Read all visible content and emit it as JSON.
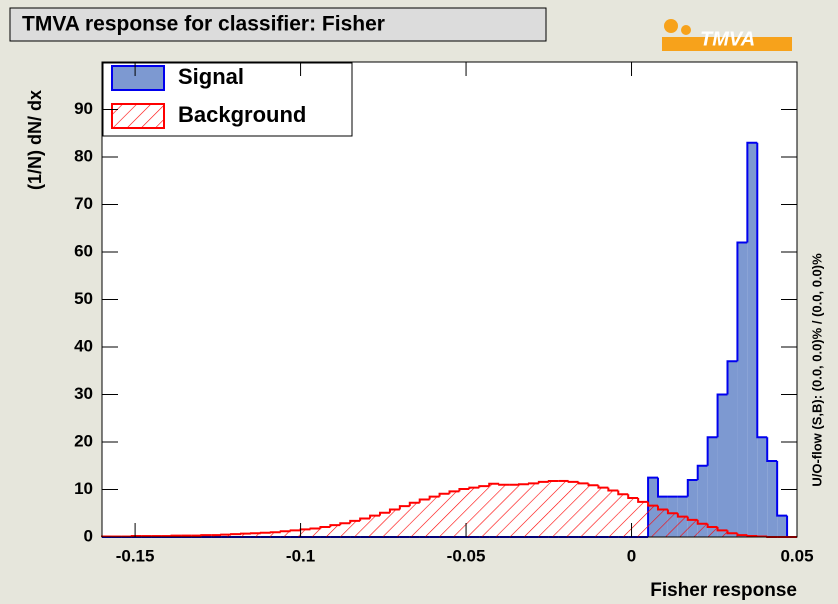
{
  "logo": "TMVA",
  "chart_data": {
    "type": "histogram",
    "title": "TMVA response for classifier: Fisher",
    "x_label": "Fisher response",
    "y_label": "(1/N) dN/ dx",
    "side_note": "U/O-flow (S,B): (0.0, 0.0)% / (0.0, 0.0)%",
    "xlim": [
      -0.16,
      0.05
    ],
    "ylim": [
      0,
      100
    ],
    "xticks": [
      -0.15,
      -0.1,
      -0.05,
      0,
      0.05
    ],
    "yticks": [
      0,
      10,
      20,
      30,
      40,
      50,
      60,
      70,
      80,
      90
    ],
    "bins": [
      -0.16,
      -0.157,
      -0.154,
      -0.151,
      -0.148,
      -0.145,
      -0.142,
      -0.139,
      -0.136,
      -0.133,
      -0.13,
      -0.127,
      -0.124,
      -0.121,
      -0.118,
      -0.115,
      -0.112,
      -0.109,
      -0.106,
      -0.103,
      -0.1,
      -0.097,
      -0.094,
      -0.091,
      -0.088,
      -0.085,
      -0.082,
      -0.079,
      -0.076,
      -0.073,
      -0.07,
      -0.067,
      -0.064,
      -0.061,
      -0.058,
      -0.055,
      -0.052,
      -0.049,
      -0.046,
      -0.043,
      -0.04,
      -0.037,
      -0.034,
      -0.031,
      -0.028,
      -0.025,
      -0.022,
      -0.019,
      -0.016,
      -0.013,
      -0.01,
      -0.007,
      -0.004,
      -0.001,
      0.002,
      0.005,
      0.008,
      0.011,
      0.014,
      0.017,
      0.02,
      0.023,
      0.026,
      0.029,
      0.032,
      0.035,
      0.038,
      0.041,
      0.044,
      0.047,
      0.05
    ],
    "series": [
      {
        "name": "Signal",
        "color": "#0000ee",
        "fill": "#7d99d1",
        "values": [
          0,
          0,
          0,
          0,
          0,
          0,
          0,
          0,
          0,
          0,
          0,
          0,
          0,
          0,
          0,
          0,
          0,
          0,
          0,
          0,
          0,
          0,
          0,
          0,
          0,
          0,
          0,
          0,
          0,
          0,
          0,
          0,
          0,
          0,
          0,
          0,
          0,
          0,
          0,
          0,
          0,
          0,
          0,
          0,
          0,
          0,
          0,
          0,
          0,
          0,
          0,
          0,
          0,
          0,
          0,
          12.5,
          8.5,
          8.5,
          8.5,
          12,
          15,
          21,
          30,
          37,
          62,
          83,
          21,
          16,
          4.5,
          0
        ]
      },
      {
        "name": "Background",
        "color": "#ff0000",
        "fill": "hatch",
        "values": [
          0.1,
          0.1,
          0.1,
          0.2,
          0.2,
          0.2,
          0.2,
          0.3,
          0.3,
          0.3,
          0.4,
          0.4,
          0.5,
          0.6,
          0.7,
          0.8,
          0.9,
          1.0,
          1.2,
          1.4,
          1.6,
          1.8,
          2.1,
          2.5,
          2.9,
          3.4,
          3.9,
          4.5,
          5.1,
          5.8,
          6.5,
          7.2,
          7.9,
          8.5,
          9.1,
          9.6,
          10.1,
          10.4,
          10.7,
          11.2,
          11.0,
          11.0,
          11.1,
          11.3,
          11.6,
          11.8,
          11.8,
          11.6,
          11.3,
          10.9,
          10.4,
          9.8,
          9.0,
          8.2,
          7.4,
          6.6,
          5.8,
          5.0,
          4.3,
          3.6,
          2.8,
          2.1,
          1.4,
          0.8,
          0.4,
          0.2,
          0.1,
          0.0,
          0.0,
          0.0
        ]
      }
    ]
  }
}
